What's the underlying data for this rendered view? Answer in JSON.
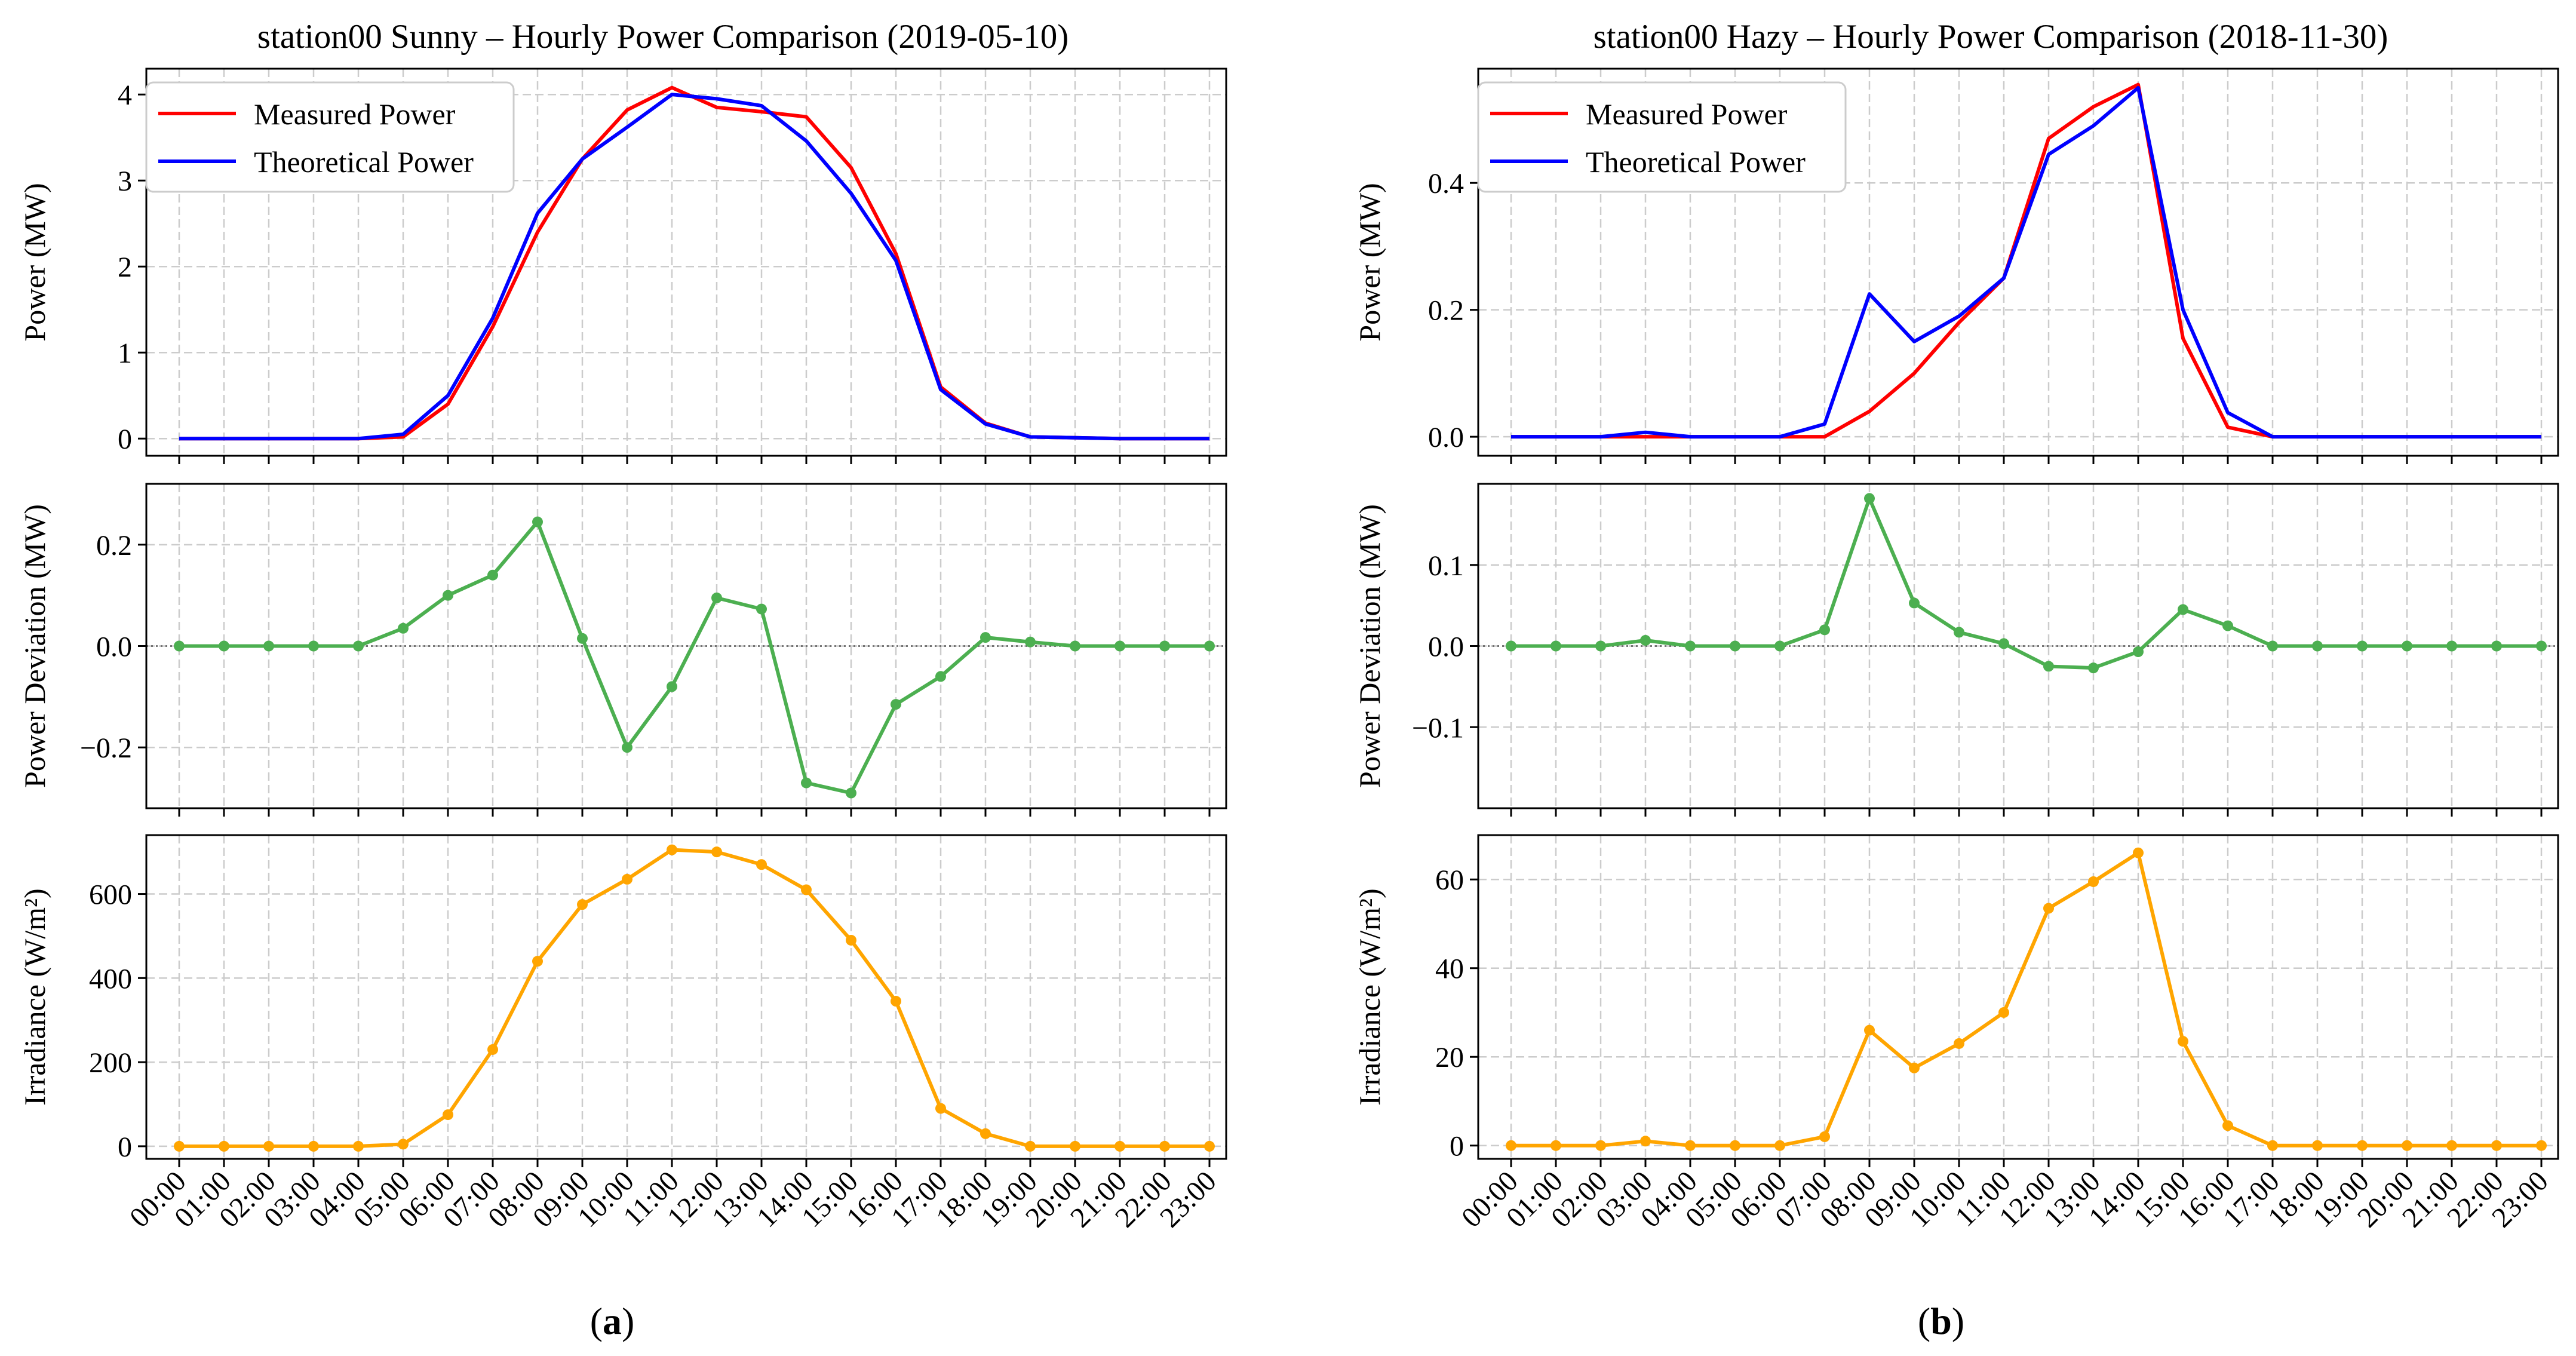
{
  "hours": [
    "00:00",
    "01:00",
    "02:00",
    "03:00",
    "04:00",
    "05:00",
    "06:00",
    "07:00",
    "08:00",
    "09:00",
    "10:00",
    "11:00",
    "12:00",
    "13:00",
    "14:00",
    "15:00",
    "16:00",
    "17:00",
    "18:00",
    "19:00",
    "20:00",
    "21:00",
    "22:00",
    "23:00"
  ],
  "colors": {
    "measured": "#ff0000",
    "theoretical": "#0000ff",
    "deviation": "#4caf50",
    "irradiance": "#ffa500"
  },
  "panels": [
    {
      "label": "a",
      "title": "station00 Sunny – Hourly Power Comparison (2019-05-10)",
      "legend": {
        "measured": "Measured Power",
        "theoretical": "Theoretical Power"
      }
    },
    {
      "label": "b",
      "title": "station00 Hazy – Hourly Power Comparison (2018-11-30)",
      "legend": {
        "measured": "Measured Power",
        "theoretical": "Theoretical Power"
      }
    }
  ],
  "chart_data": [
    {
      "type": "line",
      "panel": "a",
      "title": "station00 Sunny – Hourly Power Comparison (2019-05-10)",
      "xlabel": "",
      "ylabel": "Power (MW)",
      "ylim": [
        -0.2,
        4.3
      ],
      "yticks": [
        0,
        1,
        2,
        3,
        4
      ],
      "ytick_labels": [
        "0",
        "1",
        "2",
        "3",
        "4"
      ],
      "legend_position": "top-left",
      "grid": true,
      "series": [
        {
          "name": "Measured Power",
          "color_key": "measured",
          "values": [
            0,
            0,
            0,
            0,
            0,
            0.02,
            0.4,
            1.3,
            2.4,
            3.25,
            3.82,
            4.08,
            3.85,
            3.8,
            3.74,
            3.15,
            2.15,
            0.6,
            0.18,
            0.02,
            0.01,
            0,
            0,
            0
          ]
        },
        {
          "name": "Theoretical Power",
          "color_key": "theoretical",
          "values": [
            0,
            0,
            0,
            0,
            0,
            0.05,
            0.5,
            1.4,
            2.62,
            3.25,
            3.62,
            4.0,
            3.95,
            3.87,
            3.46,
            2.85,
            2.07,
            0.57,
            0.17,
            0.02,
            0.01,
            0,
            0,
            0
          ]
        }
      ]
    },
    {
      "type": "line",
      "panel": "a",
      "ylabel": "Power Deviation (MW)",
      "ylim": [
        -0.32,
        0.32
      ],
      "yticks": [
        -0.2,
        0,
        0.2
      ],
      "ytick_labels": [
        "−0.2",
        "0.0",
        "0.2"
      ],
      "zero_line": true,
      "grid": true,
      "series": [
        {
          "name": "Power Deviation",
          "color_key": "deviation",
          "markers": true,
          "values": [
            0,
            0,
            0,
            0,
            0,
            0.035,
            0.1,
            0.14,
            0.245,
            0.015,
            -0.2,
            -0.08,
            0.095,
            0.073,
            -0.27,
            -0.29,
            -0.115,
            -0.06,
            0.017,
            0.008,
            0,
            0,
            0,
            0
          ]
        }
      ]
    },
    {
      "type": "line",
      "panel": "a",
      "ylabel": "Irradiance (W/m²)",
      "ylim": [
        -30,
        740
      ],
      "yticks": [
        0,
        200,
        400,
        600
      ],
      "ytick_labels": [
        "0",
        "200",
        "400",
        "600"
      ],
      "grid": true,
      "series": [
        {
          "name": "Irradiance",
          "color_key": "irradiance",
          "markers": true,
          "values": [
            0,
            0,
            0,
            0,
            0,
            5,
            75,
            230,
            440,
            575,
            635,
            705,
            700,
            670,
            610,
            490,
            345,
            90,
            30,
            0,
            0,
            0,
            0,
            0
          ]
        }
      ]
    },
    {
      "type": "line",
      "panel": "b",
      "title": "station00 Hazy – Hourly Power Comparison (2018-11-30)",
      "xlabel": "",
      "ylabel": "Power (MW)",
      "ylim": [
        -0.03,
        0.58
      ],
      "yticks": [
        0,
        0.2,
        0.4
      ],
      "ytick_labels": [
        "0.0",
        "0.2",
        "0.4"
      ],
      "legend_position": "top-left",
      "grid": true,
      "series": [
        {
          "name": "Measured Power",
          "color_key": "measured",
          "values": [
            0,
            0,
            0,
            0,
            0,
            0,
            0,
            0,
            0.04,
            0.1,
            0.18,
            0.25,
            0.47,
            0.52,
            0.555,
            0.155,
            0.015,
            0,
            0,
            0,
            0,
            0,
            0,
            0
          ]
        },
        {
          "name": "Theoretical Power",
          "color_key": "theoretical",
          "values": [
            0,
            0,
            0,
            0.007,
            0,
            0,
            0,
            0.02,
            0.225,
            0.15,
            0.19,
            0.25,
            0.445,
            0.49,
            0.55,
            0.2,
            0.038,
            0,
            0,
            0,
            0,
            0,
            0,
            0
          ]
        }
      ]
    },
    {
      "type": "line",
      "panel": "b",
      "ylabel": "Power Deviation (MW)",
      "ylim": [
        -0.2,
        0.2
      ],
      "yticks": [
        -0.1,
        0,
        0.1
      ],
      "ytick_labels": [
        "−0.1",
        "0.0",
        "0.1"
      ],
      "zero_line": true,
      "grid": true,
      "series": [
        {
          "name": "Power Deviation",
          "color_key": "deviation",
          "markers": true,
          "values": [
            0,
            0,
            0,
            0.007,
            0,
            0,
            0,
            0.02,
            0.182,
            0.053,
            0.017,
            0.003,
            -0.025,
            -0.027,
            -0.007,
            0.045,
            0.025,
            0,
            0,
            0,
            0,
            0,
            0,
            0
          ]
        }
      ]
    },
    {
      "type": "line",
      "panel": "b",
      "ylabel": "Irradiance (W/m²)",
      "ylim": [
        -3,
        70
      ],
      "yticks": [
        0,
        20,
        40,
        60
      ],
      "ytick_labels": [
        "0",
        "20",
        "40",
        "60"
      ],
      "grid": true,
      "series": [
        {
          "name": "Irradiance",
          "color_key": "irradiance",
          "markers": true,
          "values": [
            0,
            0,
            0,
            1,
            0,
            0,
            0,
            2,
            26,
            17.5,
            23,
            30,
            53.5,
            59.5,
            66,
            23.5,
            4.5,
            0,
            0,
            0,
            0,
            0,
            0,
            0
          ]
        }
      ]
    }
  ]
}
